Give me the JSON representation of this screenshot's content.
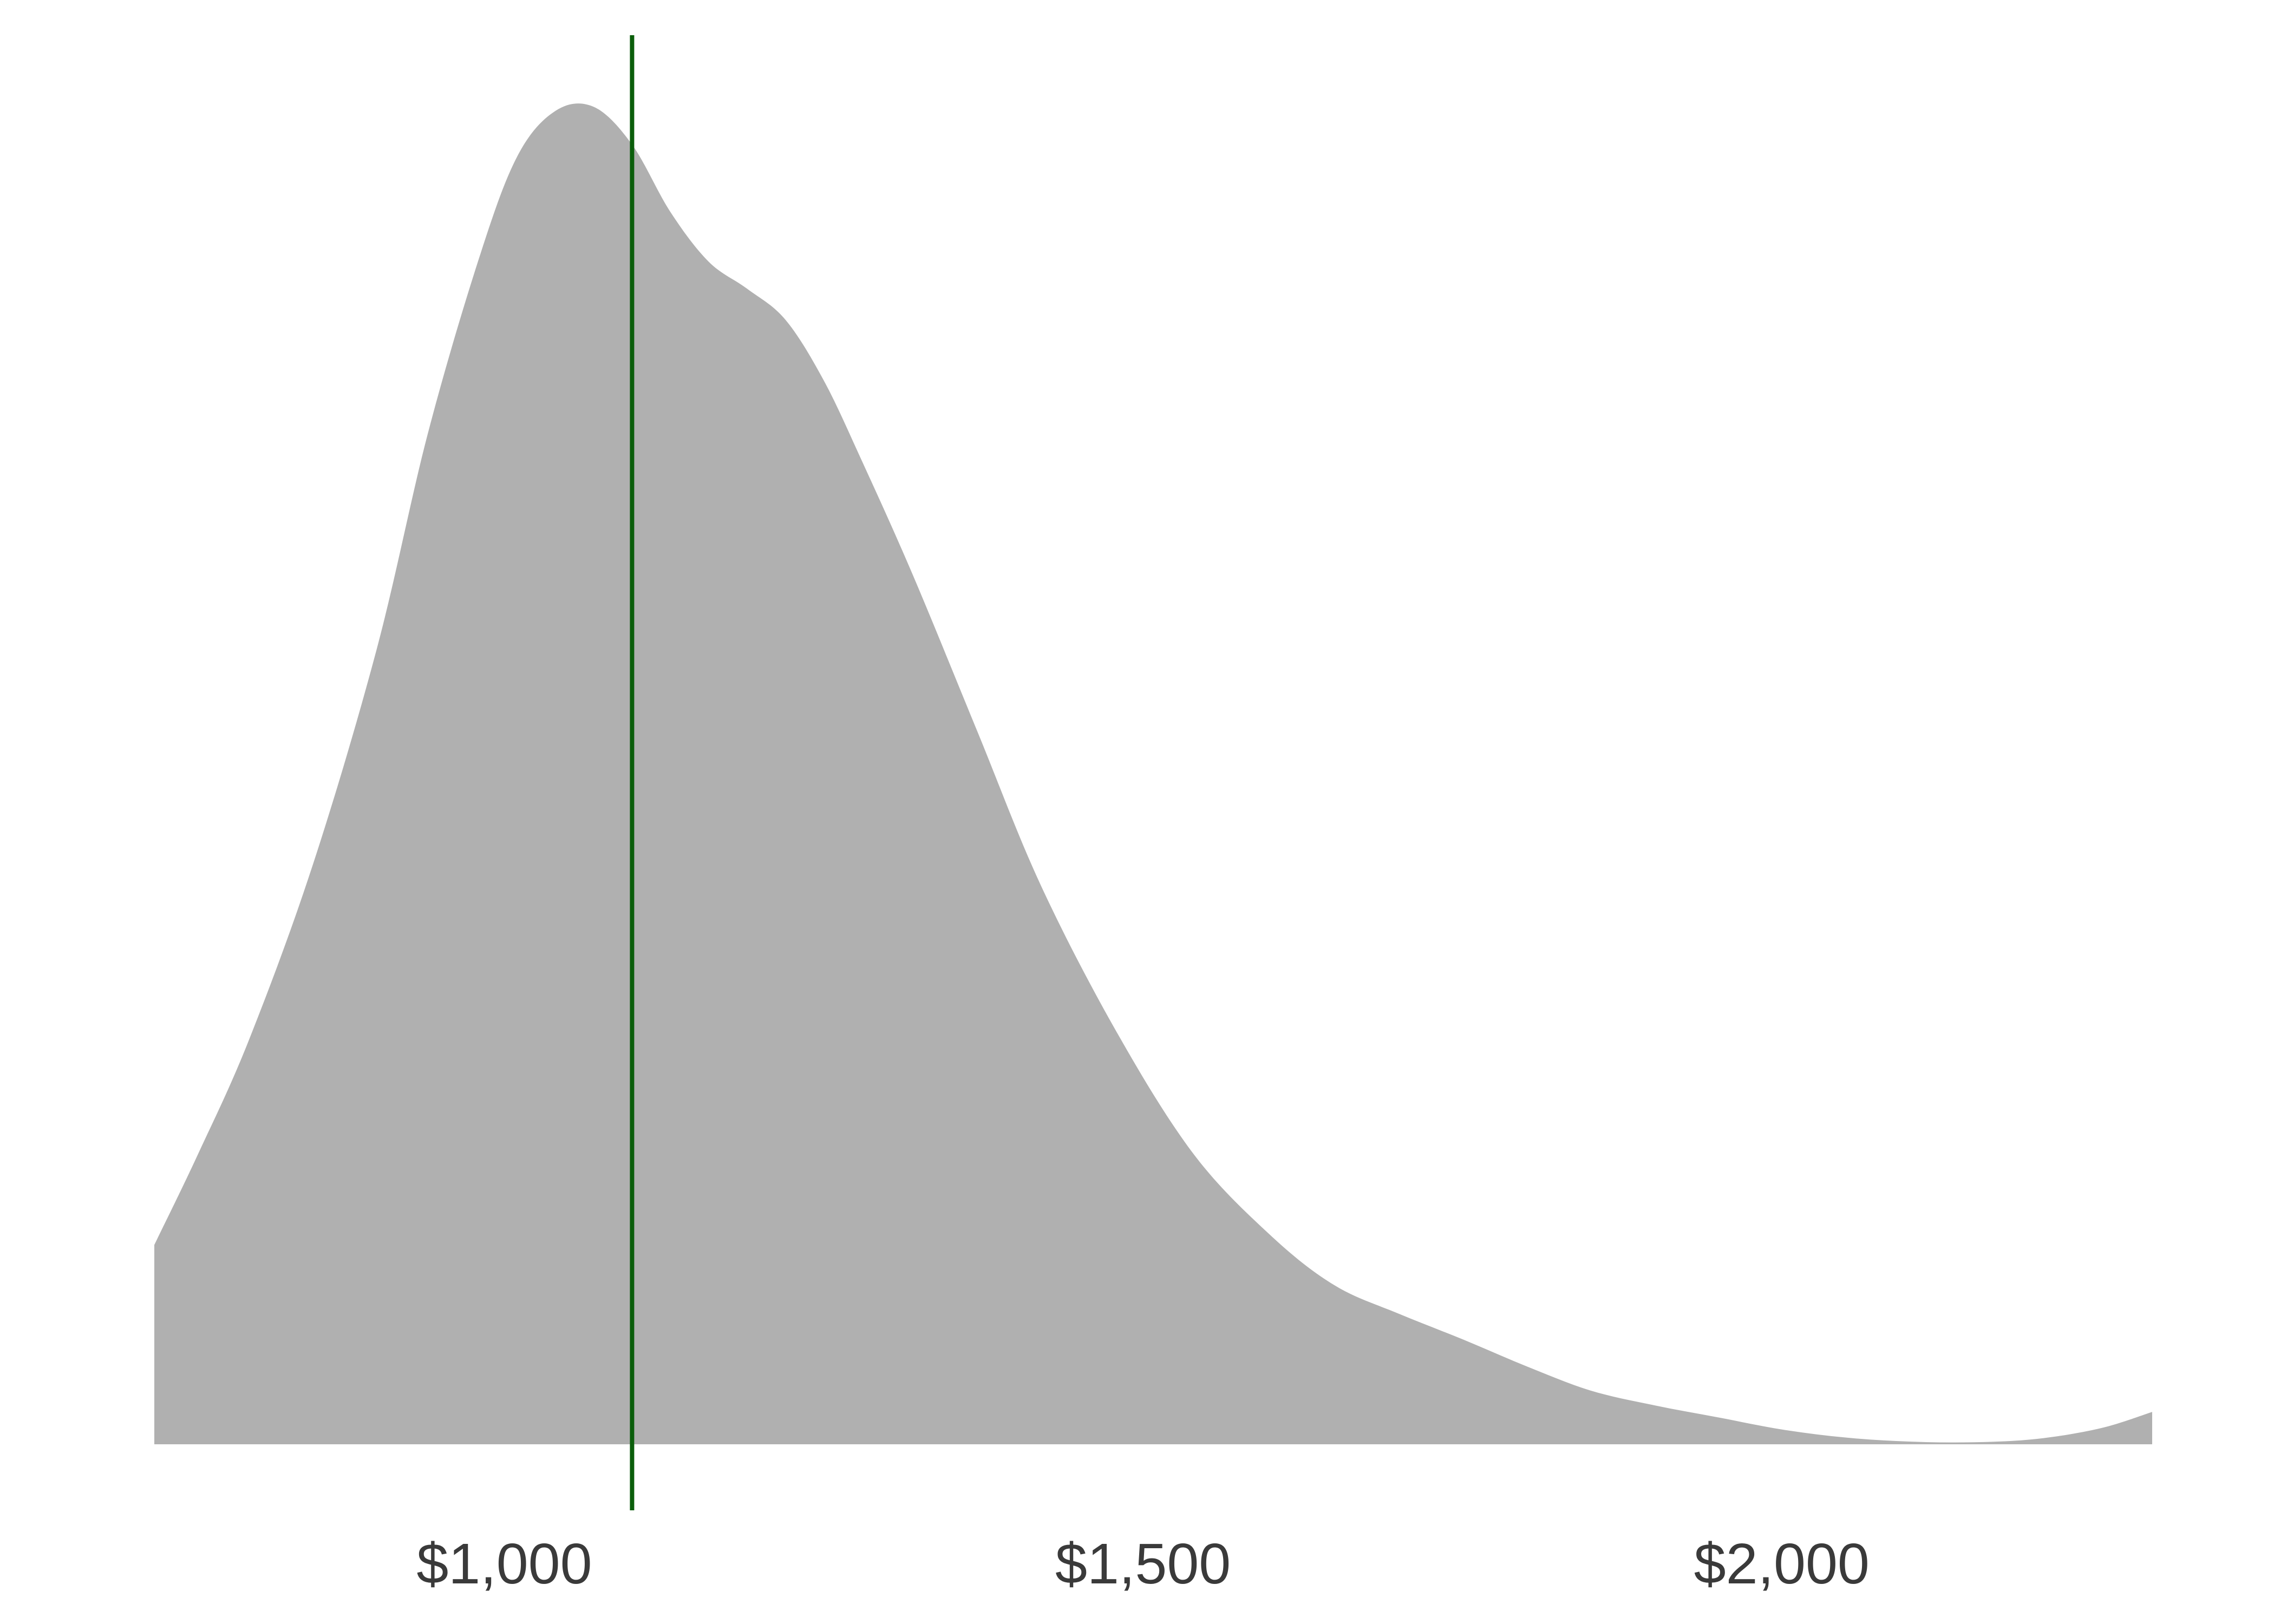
{
  "chart_data": {
    "type": "area",
    "title": "",
    "xlabel": "",
    "ylabel": "",
    "xlim": [
      726,
      2290
    ],
    "ylim": [
      0,
      1.0
    ],
    "grid": false,
    "legend": "none",
    "x_ticks": [
      {
        "value": 1000,
        "label": "$1,000"
      },
      {
        "value": 1500,
        "label": "$1,500"
      },
      {
        "value": 2000,
        "label": "$2,000"
      }
    ],
    "reference_line": {
      "x": 1100,
      "color": "#0b5e0b"
    },
    "density": {
      "color": "#b0b0b0",
      "x": [
        726,
        760,
        800,
        850,
        900,
        940,
        980,
        1010,
        1040,
        1070,
        1100,
        1130,
        1160,
        1190,
        1220,
        1250,
        1280,
        1320,
        1370,
        1420,
        1480,
        1540,
        1600,
        1650,
        1700,
        1750,
        1800,
        1850,
        1900,
        1950,
        2000,
        2050,
        2100,
        2150,
        2200,
        2250,
        2290
      ],
      "y": [
        0.148,
        0.215,
        0.3,
        0.43,
        0.59,
        0.75,
        0.88,
        0.956,
        0.99,
        0.993,
        0.965,
        0.915,
        0.878,
        0.858,
        0.835,
        0.79,
        0.73,
        0.645,
        0.53,
        0.415,
        0.305,
        0.215,
        0.155,
        0.118,
        0.097,
        0.078,
        0.058,
        0.04,
        0.029,
        0.02,
        0.011,
        0.005,
        0.002,
        0.0015,
        0.004,
        0.012,
        0.024
      ]
    }
  }
}
